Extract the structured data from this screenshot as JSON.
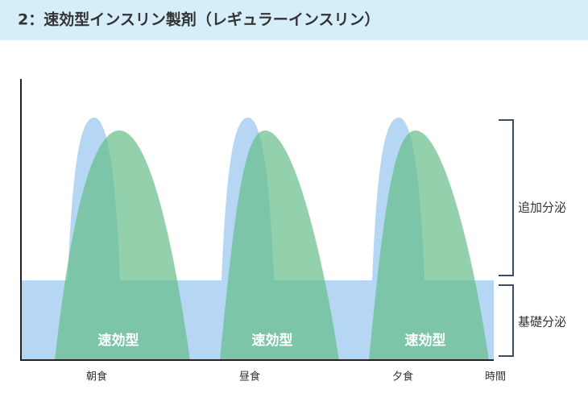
{
  "header": {
    "title": "2：速効型インスリン製剤（レギュラーインスリン）"
  },
  "diagram": {
    "peak_labels": [
      "速効型",
      "速効型",
      "速効型"
    ],
    "x_labels": [
      "朝食",
      "昼食",
      "夕食"
    ],
    "x_axis_end": "時間",
    "brackets": {
      "bolus": "追加分泌",
      "basal": "基礎分泌"
    }
  }
}
